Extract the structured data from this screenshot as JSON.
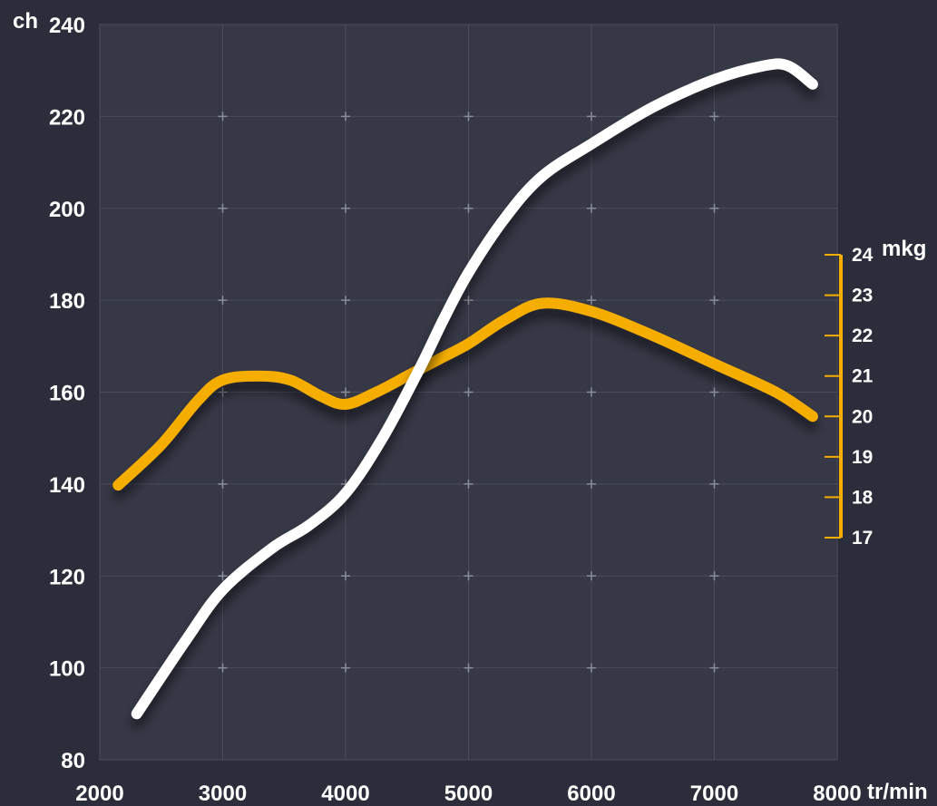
{
  "chart_data": {
    "type": "line",
    "xlabel": "tr/min",
    "ylabel": "ch",
    "y2label": "mkg",
    "xlim": [
      2000,
      8000
    ],
    "ylim": [
      80,
      240
    ],
    "y2lim": [
      17,
      24
    ],
    "x_ticks": [
      2000,
      3000,
      4000,
      5000,
      6000,
      7000,
      8000
    ],
    "y_ticks": [
      80,
      100,
      120,
      140,
      160,
      180,
      200,
      220,
      240
    ],
    "y2_ticks": [
      17,
      18,
      19,
      20,
      21,
      22,
      23,
      24
    ],
    "grid": true,
    "colors": {
      "background": "#2b2d3a",
      "plot_background": "#363846",
      "grid": "#4a4d5c",
      "power": "#ffffff",
      "torque": "#f5ad00"
    },
    "series": [
      {
        "axis": "left",
        "color": "#ffffff",
        "x": [
          2300,
          2700,
          3000,
          3400,
          3700,
          4000,
          4300,
          4600,
          4800,
          5000,
          5300,
          5600,
          6000,
          6500,
          7000,
          7400,
          7600,
          7800
        ],
        "y": [
          90,
          106,
          117,
          126,
          131,
          138,
          150,
          165,
          176,
          186,
          198,
          207,
          214,
          222,
          228,
          231,
          231,
          227
        ]
      },
      {
        "axis": "right",
        "color": "#f5ad00",
        "x": [
          2150,
          2500,
          2800,
          3000,
          3300,
          3550,
          3800,
          4000,
          4250,
          4500,
          4750,
          5000,
          5300,
          5600,
          6000,
          6500,
          7000,
          7500,
          7800
        ],
        "y": [
          18.3,
          19.3,
          20.4,
          20.9,
          21.0,
          20.9,
          20.5,
          20.3,
          20.6,
          21.0,
          21.4,
          21.8,
          22.4,
          22.8,
          22.6,
          22.0,
          21.3,
          20.6,
          20.0
        ]
      }
    ]
  }
}
